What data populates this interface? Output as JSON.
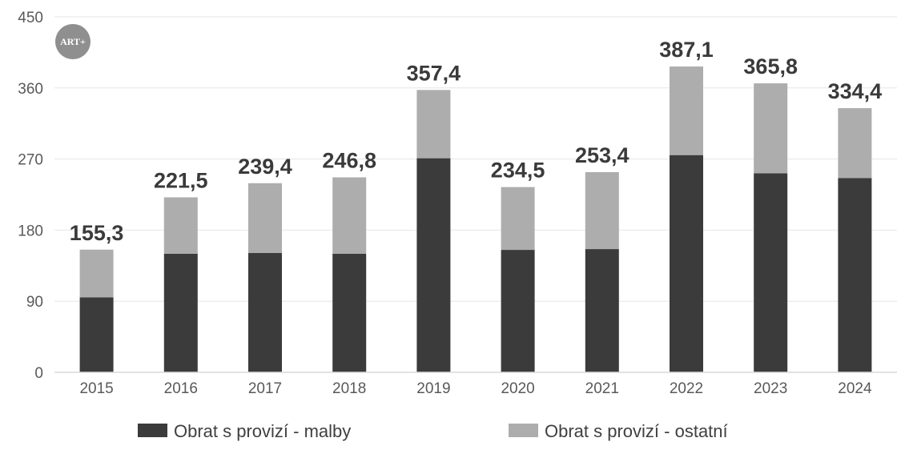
{
  "logo": {
    "text": "ART+"
  },
  "chart_data": {
    "type": "bar",
    "stacked": true,
    "categories": [
      "2015",
      "2016",
      "2017",
      "2018",
      "2019",
      "2020",
      "2021",
      "2022",
      "2023",
      "2024"
    ],
    "series": [
      {
        "name": "Obrat s provizí - malby",
        "color": "#3b3b3b",
        "values": [
          95,
          150,
          151,
          150,
          271,
          155,
          156,
          275,
          252,
          246
        ]
      },
      {
        "name": "Obrat s provizí - ostatní",
        "color": "#adadad",
        "values": [
          60.3,
          71.5,
          88.4,
          96.8,
          86.4,
          79.5,
          97.4,
          112.1,
          113.8,
          88.4
        ]
      }
    ],
    "totals": [
      "155,3",
      "221,5",
      "239,4",
      "246,8",
      "357,4",
      "234,5",
      "253,4",
      "387,1",
      "365,8",
      "334,4"
    ],
    "total_values": [
      155.3,
      221.5,
      239.4,
      246.8,
      357.4,
      234.5,
      253.4,
      387.1,
      365.8,
      334.4
    ],
    "yticks": [
      "0",
      "90",
      "180",
      "270",
      "360",
      "450"
    ],
    "ylim": [
      0,
      450
    ],
    "grid": true,
    "legend_position": "bottom"
  }
}
